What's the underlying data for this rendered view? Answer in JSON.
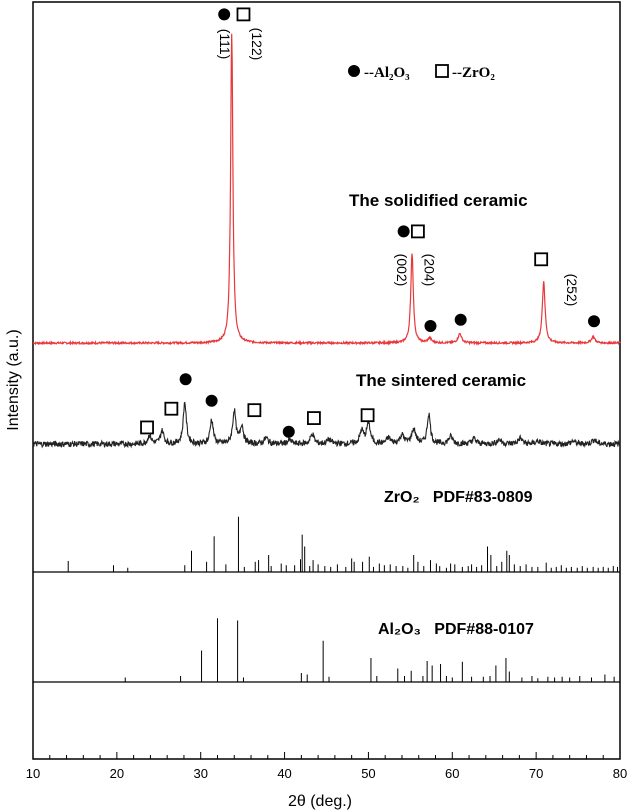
{
  "chart_data": {
    "type": "line",
    "xlabel": "2θ (deg.)",
    "ylabel": "Intensity (a.u.)",
    "xlim": [
      10,
      80
    ],
    "xticks": [
      10,
      20,
      30,
      40,
      50,
      60,
      70,
      80
    ],
    "legend": {
      "position": "top-right",
      "entries": [
        {
          "marker": "filled-circle",
          "label": "--Al₂O₃"
        },
        {
          "marker": "open-square",
          "label": "--ZrO₂"
        }
      ]
    },
    "series": [
      {
        "name": "The solidified ceramic",
        "color": "#e8383b",
        "peaks": [
          {
            "x": 33.7,
            "height": 1.0,
            "width": 0.16
          },
          {
            "x": 55.2,
            "height": 0.29,
            "width": 0.18
          },
          {
            "x": 57.3,
            "height": 0.015,
            "width": 0.25
          },
          {
            "x": 60.9,
            "height": 0.03,
            "width": 0.25
          },
          {
            "x": 70.9,
            "height": 0.2,
            "width": 0.2
          },
          {
            "x": 76.8,
            "height": 0.02,
            "width": 0.25
          }
        ],
        "markers": [
          {
            "x": 32.8,
            "symbol": "circle",
            "level": 1.06
          },
          {
            "x": 35.1,
            "symbol": "square",
            "level": 1.06
          },
          {
            "x": 54.2,
            "symbol": "circle",
            "level": 0.36
          },
          {
            "x": 55.9,
            "symbol": "square",
            "level": 0.36
          },
          {
            "x": 57.4,
            "symbol": "circle",
            "level": 0.055
          },
          {
            "x": 61.0,
            "symbol": "circle",
            "level": 0.075
          },
          {
            "x": 70.6,
            "symbol": "square",
            "level": 0.27
          },
          {
            "x": 76.9,
            "symbol": "circle",
            "level": 0.07
          }
        ],
        "hkl_labels": [
          {
            "text": "(111)",
            "x": 32.3
          },
          {
            "text": "(122)",
            "x": 36.1
          },
          {
            "text": "(002)",
            "x": 53.4
          },
          {
            "text": "(204)",
            "x": 56.7
          },
          {
            "text": "(252)",
            "x": 73.7
          }
        ]
      },
      {
        "name": "The sintered ceramic",
        "color": "#222222",
        "peaks": [
          {
            "x": 23.9,
            "height": 0.12,
            "width": 0.25
          },
          {
            "x": 25.4,
            "height": 0.18,
            "width": 0.25
          },
          {
            "x": 28.1,
            "height": 0.58,
            "width": 0.22
          },
          {
            "x": 31.3,
            "height": 0.34,
            "width": 0.22
          },
          {
            "x": 34.0,
            "height": 0.46,
            "width": 0.22
          },
          {
            "x": 34.9,
            "height": 0.26,
            "width": 0.22
          },
          {
            "x": 37.8,
            "height": 0.08,
            "width": 0.3
          },
          {
            "x": 40.6,
            "height": 0.05,
            "width": 0.3
          },
          {
            "x": 43.3,
            "height": 0.14,
            "width": 0.25
          },
          {
            "x": 45.3,
            "height": 0.06,
            "width": 0.3
          },
          {
            "x": 49.2,
            "height": 0.18,
            "width": 0.25
          },
          {
            "x": 50.0,
            "height": 0.3,
            "width": 0.25
          },
          {
            "x": 52.4,
            "height": 0.08,
            "width": 0.3
          },
          {
            "x": 54.0,
            "height": 0.12,
            "width": 0.3
          },
          {
            "x": 55.4,
            "height": 0.2,
            "width": 0.3
          },
          {
            "x": 57.2,
            "height": 0.42,
            "width": 0.22
          },
          {
            "x": 59.8,
            "height": 0.1,
            "width": 0.3
          },
          {
            "x": 62.6,
            "height": 0.07,
            "width": 0.3
          },
          {
            "x": 65.6,
            "height": 0.06,
            "width": 0.3
          },
          {
            "x": 68.1,
            "height": 0.08,
            "width": 0.3
          },
          {
            "x": 70.2,
            "height": 0.04,
            "width": 0.3
          },
          {
            "x": 74.4,
            "height": 0.04,
            "width": 0.3
          },
          {
            "x": 76.9,
            "height": 0.06,
            "width": 0.3
          }
        ],
        "markers": [
          {
            "x": 23.6,
            "symbol": "square",
            "level": 0.23
          },
          {
            "x": 26.5,
            "symbol": "square",
            "level": 0.49
          },
          {
            "x": 28.2,
            "symbol": "circle",
            "level": 0.9
          },
          {
            "x": 31.3,
            "symbol": "circle",
            "level": 0.6
          },
          {
            "x": 36.4,
            "symbol": "square",
            "level": 0.47
          },
          {
            "x": 40.5,
            "symbol": "circle",
            "level": 0.17
          },
          {
            "x": 43.5,
            "symbol": "square",
            "level": 0.36
          },
          {
            "x": 49.9,
            "symbol": "square",
            "level": 0.4
          }
        ]
      },
      {
        "name": "ZrO₂   PDF#83-0809",
        "type": "reference",
        "lines": [
          {
            "x": 14.2,
            "i": 0.13
          },
          {
            "x": 19.6,
            "i": 0.08
          },
          {
            "x": 21.3,
            "i": 0.05
          },
          {
            "x": 28.1,
            "i": 0.08
          },
          {
            "x": 28.9,
            "i": 0.25
          },
          {
            "x": 30.7,
            "i": 0.12
          },
          {
            "x": 31.6,
            "i": 0.42
          },
          {
            "x": 33.0,
            "i": 0.09
          },
          {
            "x": 34.5,
            "i": 0.65
          },
          {
            "x": 35.2,
            "i": 0.06
          },
          {
            "x": 36.5,
            "i": 0.12
          },
          {
            "x": 36.9,
            "i": 0.14
          },
          {
            "x": 38.1,
            "i": 0.2
          },
          {
            "x": 38.4,
            "i": 0.07
          },
          {
            "x": 39.6,
            "i": 0.1
          },
          {
            "x": 40.2,
            "i": 0.08
          },
          {
            "x": 41.2,
            "i": 0.08
          },
          {
            "x": 41.9,
            "i": 0.15
          },
          {
            "x": 42.1,
            "i": 0.44
          },
          {
            "x": 42.4,
            "i": 0.3
          },
          {
            "x": 43.0,
            "i": 0.07
          },
          {
            "x": 43.4,
            "i": 0.14
          },
          {
            "x": 44.0,
            "i": 0.09
          },
          {
            "x": 44.8,
            "i": 0.07
          },
          {
            "x": 45.5,
            "i": 0.06
          },
          {
            "x": 46.3,
            "i": 0.09
          },
          {
            "x": 47.3,
            "i": 0.06
          },
          {
            "x": 48.0,
            "i": 0.16
          },
          {
            "x": 48.3,
            "i": 0.12
          },
          {
            "x": 49.3,
            "i": 0.12
          },
          {
            "x": 50.1,
            "i": 0.18
          },
          {
            "x": 50.6,
            "i": 0.06
          },
          {
            "x": 51.3,
            "i": 0.1
          },
          {
            "x": 51.9,
            "i": 0.08
          },
          {
            "x": 52.6,
            "i": 0.09
          },
          {
            "x": 53.3,
            "i": 0.07
          },
          {
            "x": 54.1,
            "i": 0.07
          },
          {
            "x": 54.7,
            "i": 0.05
          },
          {
            "x": 55.4,
            "i": 0.2
          },
          {
            "x": 55.9,
            "i": 0.12
          },
          {
            "x": 56.6,
            "i": 0.07
          },
          {
            "x": 57.4,
            "i": 0.14
          },
          {
            "x": 58.1,
            "i": 0.1
          },
          {
            "x": 58.5,
            "i": 0.07
          },
          {
            "x": 59.3,
            "i": 0.05
          },
          {
            "x": 59.8,
            "i": 0.1
          },
          {
            "x": 60.3,
            "i": 0.09
          },
          {
            "x": 61.2,
            "i": 0.06
          },
          {
            "x": 61.9,
            "i": 0.07
          },
          {
            "x": 62.3,
            "i": 0.09
          },
          {
            "x": 62.9,
            "i": 0.06
          },
          {
            "x": 63.5,
            "i": 0.08
          },
          {
            "x": 64.2,
            "i": 0.3
          },
          {
            "x": 64.6,
            "i": 0.2
          },
          {
            "x": 65.3,
            "i": 0.07
          },
          {
            "x": 65.9,
            "i": 0.12
          },
          {
            "x": 66.5,
            "i": 0.25
          },
          {
            "x": 66.8,
            "i": 0.2
          },
          {
            "x": 67.4,
            "i": 0.09
          },
          {
            "x": 68.1,
            "i": 0.07
          },
          {
            "x": 68.8,
            "i": 0.09
          },
          {
            "x": 69.5,
            "i": 0.06
          },
          {
            "x": 70.2,
            "i": 0.06
          },
          {
            "x": 71.2,
            "i": 0.11
          },
          {
            "x": 71.8,
            "i": 0.05
          },
          {
            "x": 72.4,
            "i": 0.06
          },
          {
            "x": 73.0,
            "i": 0.08
          },
          {
            "x": 73.6,
            "i": 0.05
          },
          {
            "x": 74.2,
            "i": 0.06
          },
          {
            "x": 74.9,
            "i": 0.05
          },
          {
            "x": 75.5,
            "i": 0.07
          },
          {
            "x": 76.1,
            "i": 0.05
          },
          {
            "x": 76.8,
            "i": 0.06
          },
          {
            "x": 77.4,
            "i": 0.05
          },
          {
            "x": 78.0,
            "i": 0.06
          },
          {
            "x": 78.6,
            "i": 0.05
          },
          {
            "x": 79.2,
            "i": 0.07
          },
          {
            "x": 79.7,
            "i": 0.06
          }
        ]
      },
      {
        "name": "Al₂O₃   PDF#88-0107",
        "type": "reference",
        "lines": [
          {
            "x": 21.0,
            "i": 0.06
          },
          {
            "x": 27.6,
            "i": 0.08
          },
          {
            "x": 30.1,
            "i": 0.42
          },
          {
            "x": 32.0,
            "i": 0.85
          },
          {
            "x": 34.4,
            "i": 0.82
          },
          {
            "x": 35.1,
            "i": 0.06
          },
          {
            "x": 42.0,
            "i": 0.12
          },
          {
            "x": 42.7,
            "i": 0.1
          },
          {
            "x": 44.6,
            "i": 0.55
          },
          {
            "x": 45.3,
            "i": 0.07
          },
          {
            "x": 50.3,
            "i": 0.32
          },
          {
            "x": 51.0,
            "i": 0.08
          },
          {
            "x": 53.5,
            "i": 0.18
          },
          {
            "x": 54.3,
            "i": 0.08
          },
          {
            "x": 55.1,
            "i": 0.15
          },
          {
            "x": 56.5,
            "i": 0.08
          },
          {
            "x": 57.0,
            "i": 0.28
          },
          {
            "x": 57.6,
            "i": 0.22
          },
          {
            "x": 58.6,
            "i": 0.24
          },
          {
            "x": 59.3,
            "i": 0.08
          },
          {
            "x": 60.0,
            "i": 0.06
          },
          {
            "x": 61.2,
            "i": 0.27
          },
          {
            "x": 62.3,
            "i": 0.07
          },
          {
            "x": 63.7,
            "i": 0.07
          },
          {
            "x": 64.5,
            "i": 0.08
          },
          {
            "x": 65.2,
            "i": 0.22
          },
          {
            "x": 66.4,
            "i": 0.32
          },
          {
            "x": 66.8,
            "i": 0.14
          },
          {
            "x": 68.3,
            "i": 0.06
          },
          {
            "x": 69.5,
            "i": 0.08
          },
          {
            "x": 70.2,
            "i": 0.05
          },
          {
            "x": 71.4,
            "i": 0.07
          },
          {
            "x": 72.2,
            "i": 0.06
          },
          {
            "x": 73.1,
            "i": 0.07
          },
          {
            "x": 74.0,
            "i": 0.06
          },
          {
            "x": 75.2,
            "i": 0.08
          },
          {
            "x": 76.6,
            "i": 0.06
          },
          {
            "x": 78.2,
            "i": 0.1
          },
          {
            "x": 79.3,
            "i": 0.07
          }
        ]
      }
    ]
  }
}
